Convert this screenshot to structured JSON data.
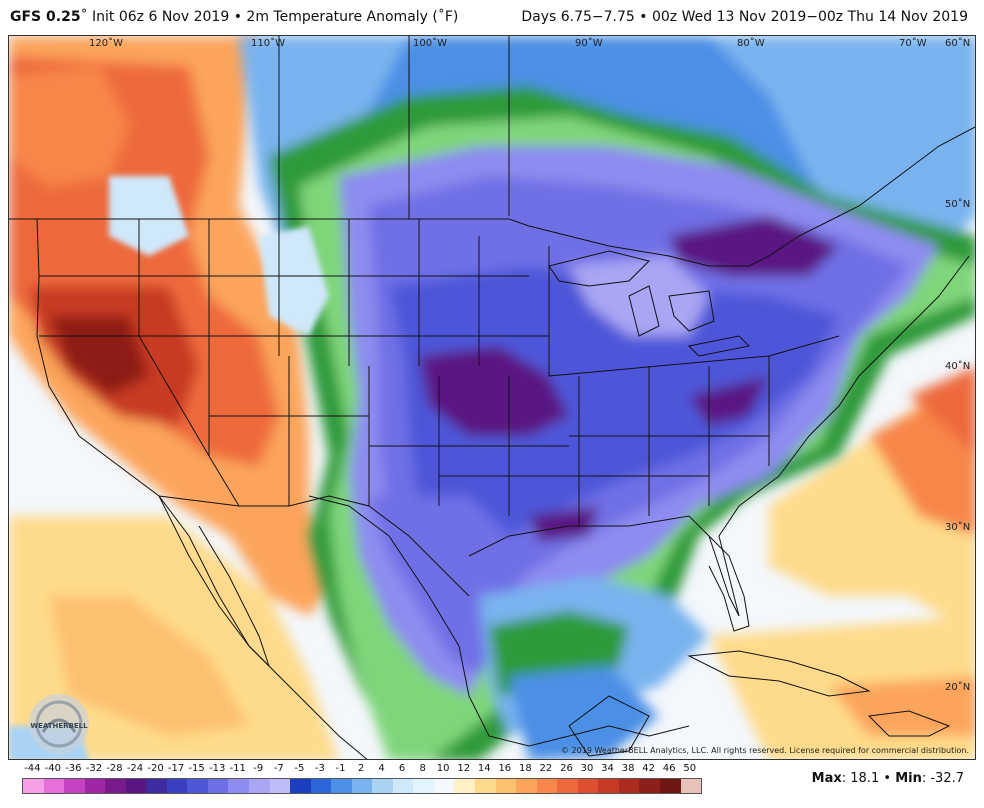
{
  "header": {
    "model": "GFS 0.25",
    "init": "Init 06z 6 Nov 2019",
    "field": "2m Temperature Anomaly (˚F)",
    "valid": "Days 6.75−7.75 • 00z Wed 13 Nov 2019−00z Thu 14 Nov 2019"
  },
  "map": {
    "longitude_labels": [
      "120˚W",
      "110˚W",
      "100˚W",
      "90˚W",
      "80˚W",
      "70˚W",
      "60˚N"
    ],
    "latitude_labels": [
      "50˚N",
      "40˚N",
      "30˚N",
      "20˚N"
    ],
    "watermark_text": "WEATHERBELL",
    "copyright": "© 2019 WeatherBELL Analytics, LLC. All rights reserved. License required for commercial distribution."
  },
  "legend": {
    "tick_labels": [
      "-44",
      "-40",
      "-36",
      "-32",
      "-28",
      "-24",
      "-20",
      "-17",
      "-15",
      "-13",
      "-11",
      "-9",
      "-7",
      "-5",
      "-3",
      "-1",
      "2",
      "4",
      "6",
      "8",
      "10",
      "12",
      "14",
      "16",
      "18",
      "22",
      "26",
      "30",
      "34",
      "38",
      "42",
      "46",
      "50"
    ],
    "colors": [
      "#f79fe6",
      "#e86fd9",
      "#c742c3",
      "#9f27a6",
      "#7a1b8c",
      "#5a1682",
      "#3f2aa0",
      "#3c3fc0",
      "#4d57d8",
      "#6f6fe6",
      "#8d8cf0",
      "#a9a6f4",
      "#bfbdf7",
      "#1b3fbf",
      "#2c66d8",
      "#4b8fe6",
      "#79b3ef",
      "#a9d3f5",
      "#cfe8fa",
      "#e3f3fd",
      "#f4f7fb",
      "#fff1c4",
      "#fedb8c",
      "#fdc070",
      "#fca45c",
      "#f7874a",
      "#ee6a3c",
      "#df4e2e",
      "#c83a24",
      "#ad2b1e",
      "#8e1f18",
      "#6f1812",
      "#e6c2b8"
    ],
    "max_label": "Max",
    "max_value": "18.1",
    "min_label": "Min",
    "min_value": "-32.7"
  }
}
